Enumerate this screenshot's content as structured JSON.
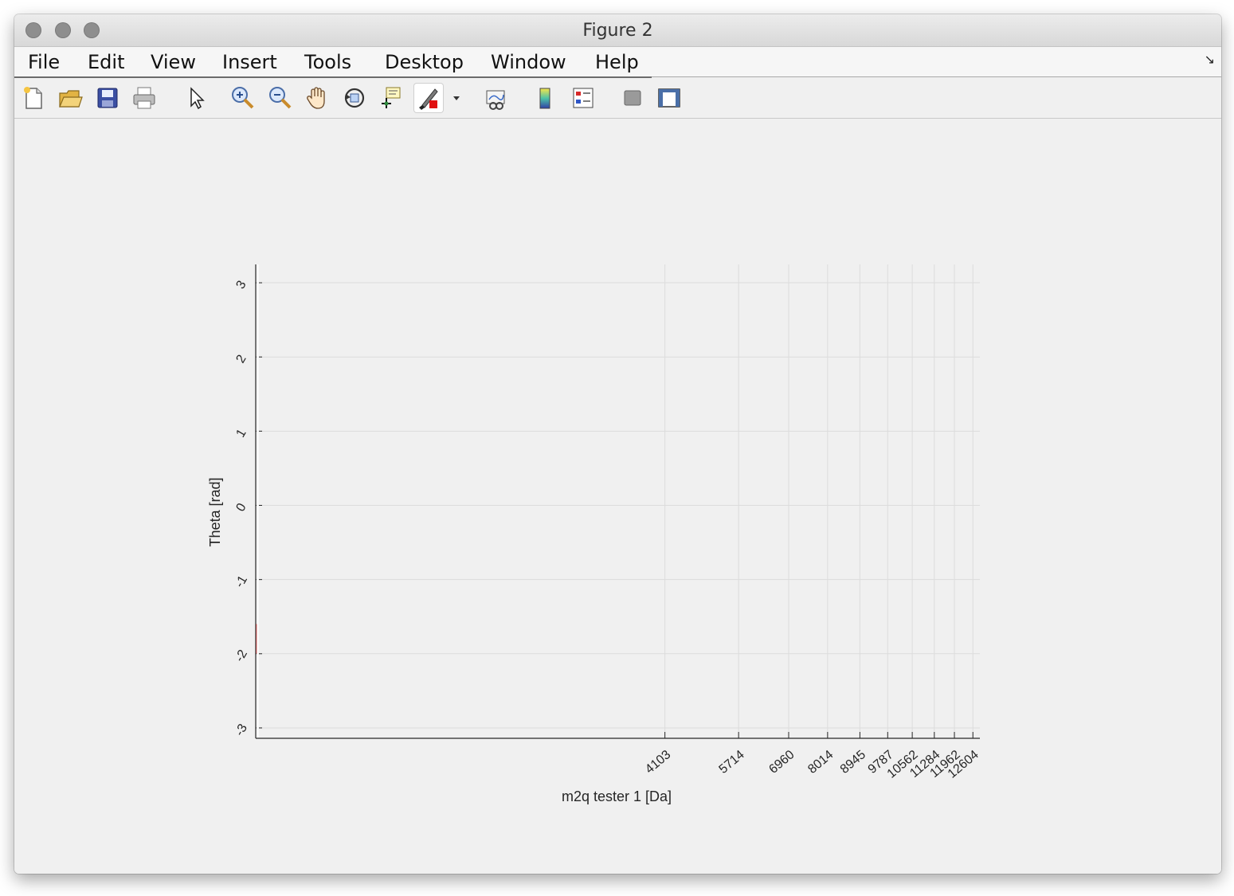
{
  "window": {
    "title": "Figure 2"
  },
  "menu": [
    "File",
    "Edit",
    "View",
    "Insert",
    "Tools",
    "Desktop",
    "Window",
    "Help"
  ],
  "toolbar": [
    {
      "name": "new-figure-icon"
    },
    {
      "name": "open-file-icon"
    },
    {
      "name": "save-icon"
    },
    {
      "name": "print-icon"
    },
    {
      "name": "edit-plot-arrow-icon"
    },
    {
      "name": "zoom-in-icon"
    },
    {
      "name": "zoom-out-icon"
    },
    {
      "name": "pan-hand-icon"
    },
    {
      "name": "rotate-3d-icon"
    },
    {
      "name": "data-cursor-icon"
    },
    {
      "name": "brush-icon"
    },
    {
      "name": "brush-dropdown-icon"
    },
    {
      "name": "link-plot-icon"
    },
    {
      "name": "colorbar-icon"
    },
    {
      "name": "legend-icon"
    },
    {
      "name": "hide-plot-tools-icon"
    },
    {
      "name": "show-plot-tools-icon"
    }
  ],
  "chart_data": {
    "type": "line",
    "title": "",
    "xlabel": "m2q tester 1 [Da]",
    "ylabel": "Theta [rad]",
    "x_ticks": [
      "4103",
      "5714",
      "6960",
      "8014",
      "8945",
      "9787",
      "10562",
      "11284",
      "11962",
      "12604"
    ],
    "y_ticks": [
      "3",
      "2",
      "1",
      "0",
      "-1",
      "-2",
      "-3"
    ],
    "y_tick_values": [
      3,
      2,
      1,
      0,
      -1,
      -2,
      -3
    ],
    "ylim": [
      -3.14,
      3.14
    ],
    "x_scale": "sqrt",
    "grid": true,
    "series": [
      {
        "color": "#ff0000",
        "x": [
          0,
          0,
          0
        ],
        "y": [
          -1.6,
          -1.9,
          -2.0
        ]
      }
    ]
  }
}
